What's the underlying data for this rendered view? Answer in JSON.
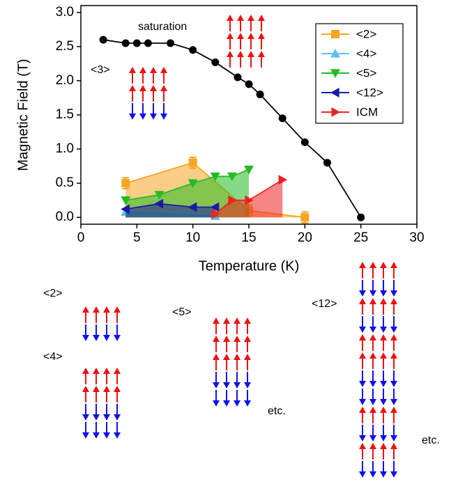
{
  "chart_data": {
    "type": "line",
    "xlabel": "Temperature (K)",
    "ylabel": "Magnetic Field (T)",
    "xlim": [
      0,
      30
    ],
    "ylim": [
      -0.1,
      3.1
    ],
    "xticks": [
      0,
      5,
      10,
      15,
      20,
      25,
      30
    ],
    "yticks": [
      {
        "value": 0,
        "label": "0.0"
      },
      0.5,
      {
        "value": 1,
        "label": "1.0"
      },
      1.5,
      {
        "value": 2,
        "label": "2.0"
      },
      2.5,
      {
        "value": 3,
        "label": "3.0"
      }
    ],
    "legend": "upper right",
    "boundary": {
      "color": "#000000",
      "marker": "circle",
      "x": [
        2,
        4,
        5,
        6,
        8,
        10,
        12,
        14,
        15,
        16,
        18,
        20,
        22,
        25
      ],
      "values": [
        2.6,
        2.55,
        2.55,
        2.55,
        2.55,
        2.45,
        2.27,
        2.05,
        1.95,
        1.8,
        1.45,
        1.1,
        0.8,
        0
      ]
    },
    "series": [
      {
        "name": "<2>",
        "color": "#f5a623",
        "marker": "square",
        "x": [
          4,
          10,
          15,
          20
        ],
        "values": [
          0.5,
          0.8,
          0.1,
          0
        ],
        "errors": [
          0.08,
          0.08,
          0.08,
          0.08
        ]
      },
      {
        "name": "<4>",
        "color": "#5bc0f0",
        "marker": "triangle-up",
        "x": [
          4,
          12
        ],
        "values": [
          0.08,
          0.02
        ]
      },
      {
        "name": "<5>",
        "color": "#22bb22",
        "marker": "triangle-down",
        "x": [
          4,
          7,
          10,
          12,
          13.5,
          15
        ],
        "values": [
          0.25,
          0.33,
          0.5,
          0.6,
          0.6,
          0.7
        ]
      },
      {
        "name": "<12>",
        "color": "#1a1aaa",
        "marker": "triangle-left",
        "x": [
          4,
          7,
          10,
          12
        ],
        "values": [
          0.12,
          0.2,
          0.15,
          0.15
        ]
      },
      {
        "name": "ICM",
        "color": "#ee2222",
        "marker": "triangle-right",
        "x": [
          12,
          13.5,
          15,
          18
        ],
        "values": [
          0.05,
          0.25,
          0.25,
          0.55
        ]
      }
    ],
    "annotations": {
      "three": "<3>",
      "saturation": "saturation",
      "two": "<2>",
      "four": "<4>",
      "five": "<5>",
      "twelve": "<12>",
      "etc_a": "etc.",
      "etc_b": "etc."
    }
  }
}
